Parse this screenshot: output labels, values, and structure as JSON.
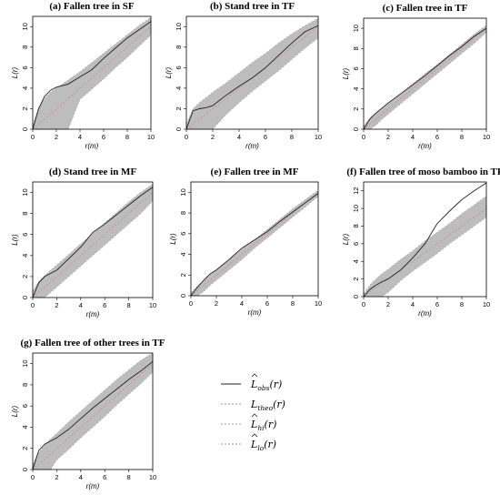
{
  "chart_data": [
    {
      "type": "line",
      "title": "(a) Fallen tree in SF",
      "xlabel": "r(m)",
      "ylabel": "L(r)",
      "xlim": [
        0,
        10
      ],
      "ylim": [
        0,
        11
      ],
      "x_ticks": [
        0,
        2,
        4,
        6,
        8,
        10
      ],
      "y_ticks": [
        0,
        2,
        4,
        6,
        8,
        10
      ],
      "r": [
        0,
        0.5,
        1,
        1.5,
        2,
        3,
        4,
        5,
        6,
        7,
        8,
        9,
        10
      ],
      "series": [
        {
          "key": "obs",
          "values": [
            0,
            2.0,
            3.2,
            3.8,
            4.1,
            4.4,
            5.1,
            5.8,
            6.9,
            7.9,
            8.9,
            9.7,
            10.5
          ]
        },
        {
          "key": "theo",
          "values": [
            0,
            0.5,
            1,
            1.5,
            2,
            3,
            4,
            5,
            6,
            7,
            8,
            9,
            10
          ]
        },
        {
          "key": "hi",
          "values": [
            0.4,
            2.1,
            3.0,
            3.6,
            4.0,
            4.8,
            5.6,
            6.5,
            7.4,
            8.3,
            9.2,
            10.1,
            10.9
          ]
        },
        {
          "key": "lo",
          "values": [
            0,
            0,
            0,
            0,
            0,
            0,
            2.9,
            3.9,
            4.9,
            6.0,
            7.0,
            8.1,
            9.2
          ]
        }
      ]
    },
    {
      "type": "line",
      "title": "(b) Stand tree in TF",
      "xlabel": "r(m)",
      "ylabel": "L(r)",
      "xlim": [
        0,
        10
      ],
      "ylim": [
        0,
        11
      ],
      "x_ticks": [
        0,
        2,
        4,
        6,
        8,
        10
      ],
      "y_ticks": [
        0,
        2,
        4,
        6,
        8,
        10
      ],
      "r": [
        0,
        0.5,
        1,
        1.5,
        2,
        3,
        4,
        5,
        6,
        7,
        8,
        9,
        10
      ],
      "series": [
        {
          "key": "obs",
          "values": [
            0,
            1.8,
            2.0,
            2.1,
            2.3,
            3.3,
            4.2,
            5.0,
            6.0,
            7.2,
            8.4,
            9.5,
            10.1
          ]
        },
        {
          "key": "theo",
          "values": [
            0,
            0.5,
            1,
            1.5,
            2,
            3,
            4,
            5,
            6,
            7,
            8,
            9,
            10
          ]
        },
        {
          "key": "hi",
          "values": [
            0.5,
            2.0,
            2.6,
            3.1,
            3.6,
            4.5,
            5.5,
            6.5,
            7.4,
            8.4,
            9.3,
            10.1,
            10.8
          ]
        },
        {
          "key": "lo",
          "values": [
            0,
            0,
            0,
            0,
            0,
            1.4,
            2.6,
            3.7,
            4.7,
            5.7,
            6.8,
            7.9,
            8.9
          ]
        }
      ]
    },
    {
      "type": "line",
      "title": "(c) Fallen tree in TF",
      "xlabel": "r(m)",
      "ylabel": "L(r)",
      "xlim": [
        0,
        10
      ],
      "ylim": [
        0,
        11
      ],
      "x_ticks": [
        0,
        2,
        4,
        6,
        8,
        10
      ],
      "y_ticks": [
        0,
        2,
        4,
        6,
        8,
        10
      ],
      "r": [
        0,
        0.5,
        1,
        1.5,
        2,
        3,
        4,
        5,
        6,
        7,
        8,
        9,
        10
      ],
      "series": [
        {
          "key": "obs",
          "values": [
            0,
            1.0,
            1.6,
            2.1,
            2.6,
            3.5,
            4.4,
            5.3,
            6.3,
            7.3,
            8.2,
            9.2,
            10.0
          ]
        },
        {
          "key": "theo",
          "values": [
            0,
            0.5,
            1,
            1.5,
            2,
            3,
            4,
            5,
            6,
            7,
            8,
            9,
            10
          ]
        },
        {
          "key": "hi",
          "values": [
            0.3,
            1.1,
            1.6,
            2.1,
            2.6,
            3.5,
            4.5,
            5.5,
            6.4,
            7.4,
            8.4,
            9.4,
            10.3
          ]
        },
        {
          "key": "lo",
          "values": [
            0,
            0,
            0.4,
            1.0,
            1.5,
            2.5,
            3.5,
            4.5,
            5.5,
            6.5,
            7.5,
            8.5,
            9.6
          ]
        }
      ]
    },
    {
      "type": "line",
      "title": "(d) Stand tree in MF",
      "xlabel": "r(m)",
      "ylabel": "L(r)",
      "xlim": [
        0,
        10
      ],
      "ylim": [
        0,
        11
      ],
      "x_ticks": [
        0,
        2,
        4,
        6,
        8,
        10
      ],
      "y_ticks": [
        0,
        2,
        4,
        6,
        8,
        10
      ],
      "r": [
        0,
        0.5,
        1,
        1.5,
        2,
        3,
        4,
        5,
        6,
        7,
        8,
        9,
        10
      ],
      "series": [
        {
          "key": "obs",
          "values": [
            0,
            1.4,
            2.0,
            2.3,
            2.6,
            3.7,
            4.8,
            6.2,
            7.0,
            7.9,
            8.8,
            9.7,
            10.5
          ]
        },
        {
          "key": "theo",
          "values": [
            0,
            0.5,
            1,
            1.5,
            2,
            3,
            4,
            5,
            6,
            7,
            8,
            9,
            10
          ]
        },
        {
          "key": "hi",
          "values": [
            0.6,
            1.5,
            2.1,
            2.6,
            3.1,
            4.1,
            5.1,
            6.1,
            7.1,
            8.1,
            9.1,
            10.0,
            10.8
          ]
        },
        {
          "key": "lo",
          "values": [
            0,
            0,
            0,
            0.5,
            1.0,
            2.0,
            3.0,
            4.0,
            5.0,
            6.0,
            7.0,
            8.0,
            9.2
          ]
        }
      ]
    },
    {
      "type": "line",
      "title": "(e) Fallen tree in MF",
      "xlabel": "r(m)",
      "ylabel": "L(r)",
      "xlim": [
        0,
        10
      ],
      "ylim": [
        0,
        11
      ],
      "x_ticks": [
        0,
        2,
        4,
        6,
        8,
        10
      ],
      "y_ticks": [
        0,
        2,
        4,
        6,
        8,
        10
      ],
      "r": [
        0,
        0.5,
        1,
        1.5,
        2,
        3,
        4,
        5,
        6,
        7,
        8,
        9,
        10
      ],
      "series": [
        {
          "key": "obs",
          "values": [
            0,
            0.8,
            1.5,
            2.1,
            2.5,
            3.5,
            4.6,
            5.4,
            6.2,
            7.2,
            8.1,
            9.0,
            9.9
          ]
        },
        {
          "key": "theo",
          "values": [
            0,
            0.5,
            1,
            1.5,
            2,
            3,
            4,
            5,
            6,
            7,
            8,
            9,
            10
          ]
        },
        {
          "key": "hi",
          "values": [
            0.3,
            0.9,
            1.5,
            2.0,
            2.5,
            3.5,
            4.5,
            5.4,
            6.4,
            7.4,
            8.4,
            9.3,
            10.2
          ]
        },
        {
          "key": "lo",
          "values": [
            0,
            0,
            0.4,
            1.0,
            1.5,
            2.5,
            3.5,
            4.6,
            5.6,
            6.6,
            7.6,
            8.6,
            9.6
          ]
        }
      ]
    },
    {
      "type": "line",
      "title": "(f) Fallen tree of moso bamboo in TF",
      "xlabel": "r(m)",
      "ylabel": "L(r)",
      "xlim": [
        0,
        10
      ],
      "ylim": [
        0,
        13
      ],
      "x_ticks": [
        0,
        2,
        4,
        6,
        8,
        10
      ],
      "y_ticks": [
        0,
        2,
        4,
        6,
        8,
        10,
        12
      ],
      "r": [
        0,
        0.5,
        1,
        1.5,
        2,
        3,
        4,
        5,
        6,
        7,
        8,
        9,
        10
      ],
      "series": [
        {
          "key": "obs",
          "values": [
            0,
            0.8,
            1.3,
            1.7,
            2.0,
            3.0,
            4.4,
            6.0,
            8.3,
            9.7,
            11.0,
            12.0,
            12.9
          ]
        },
        {
          "key": "theo",
          "values": [
            0,
            0.5,
            1,
            1.5,
            2,
            3,
            4,
            5,
            6,
            7,
            8,
            9,
            10
          ]
        },
        {
          "key": "hi",
          "values": [
            0.3,
            1.3,
            2.0,
            2.6,
            3.1,
            4.2,
            5.2,
            6.3,
            7.3,
            8.3,
            9.4,
            10.4,
            11.4
          ]
        },
        {
          "key": "lo",
          "values": [
            0,
            0,
            0,
            0,
            0.5,
            1.8,
            2.9,
            3.9,
            4.9,
            6.0,
            7.0,
            8.0,
            9.0
          ]
        }
      ]
    },
    {
      "type": "line",
      "title": "(g) Fallen tree of other trees in TF",
      "xlabel": "r(m)",
      "ylabel": "L(r)",
      "xlim": [
        0,
        10
      ],
      "ylim": [
        0,
        11
      ],
      "x_ticks": [
        0,
        2,
        4,
        6,
        8,
        10
      ],
      "y_ticks": [
        0,
        2,
        4,
        6,
        8,
        10
      ],
      "r": [
        0,
        0.5,
        1,
        1.5,
        2,
        3,
        4,
        5,
        6,
        7,
        8,
        9,
        10
      ],
      "series": [
        {
          "key": "obs",
          "values": [
            0,
            1.8,
            2.4,
            2.7,
            3.0,
            3.8,
            4.8,
            5.8,
            6.7,
            7.6,
            8.5,
            9.3,
            10.2
          ]
        },
        {
          "key": "theo",
          "values": [
            0,
            0.5,
            1,
            1.5,
            2,
            3,
            4,
            5,
            6,
            7,
            8,
            9,
            10
          ]
        },
        {
          "key": "hi",
          "values": [
            0.5,
            1.6,
            2.3,
            2.9,
            3.4,
            4.5,
            5.5,
            6.5,
            7.5,
            8.5,
            9.4,
            10.3,
            11.0
          ]
        },
        {
          "key": "lo",
          "values": [
            0,
            0,
            0,
            0,
            0.9,
            1.9,
            3.0,
            4.0,
            5.0,
            6.1,
            7.1,
            8.1,
            9.2
          ]
        }
      ]
    }
  ],
  "legend": {
    "items": [
      {
        "key": "obs",
        "name": "L",
        "sub": "obs",
        "arg": "(r)",
        "hat": true,
        "color": "#222222",
        "dash": ""
      },
      {
        "key": "theo",
        "name": "L",
        "sub": "theo",
        "arg": "(r)",
        "hat": false,
        "color": "#e07a7a",
        "dash": "2,2"
      },
      {
        "key": "hi",
        "name": "L",
        "sub": "hi",
        "arg": "(r)",
        "hat": true,
        "color": "#9a9a9a",
        "dash": "2,2"
      },
      {
        "key": "lo",
        "name": "L",
        "sub": "lo",
        "arg": "(r)",
        "hat": true,
        "color": "#9a9a9a",
        "dash": "2,2"
      }
    ]
  },
  "colors": {
    "envelope": "#bdbdbd",
    "observed": "#222222",
    "theoretical": "#e07a7a"
  }
}
